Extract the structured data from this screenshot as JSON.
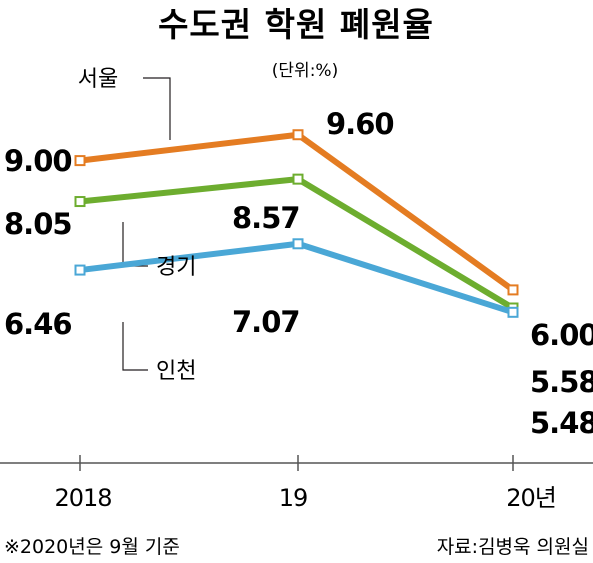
{
  "chart_data": {
    "type": "line",
    "title": "수도권 학원 폐원율",
    "unit": "(단위:%)",
    "categories": [
      "2018",
      "19",
      "20년"
    ],
    "series": [
      {
        "name": "서울",
        "values": [
          9.0,
          9.6,
          6.0
        ],
        "labels": [
          "9.00",
          "9.60",
          "6.00"
        ],
        "color": "#e47c22"
      },
      {
        "name": "경기",
        "values": [
          8.05,
          8.57,
          5.58
        ],
        "labels": [
          "8.05",
          "8.57",
          "5.58"
        ],
        "color": "#6dad2f"
      },
      {
        "name": "인천",
        "values": [
          6.46,
          7.07,
          5.48
        ],
        "labels": [
          "6.46",
          "7.07",
          "5.48"
        ],
        "color": "#4aa7d6"
      }
    ],
    "ylim": [
      4.0,
      10.5
    ],
    "grid": false,
    "legend": "inline",
    "note": "※2020년은 9월 기준",
    "source": "자료:김병욱 의원실"
  }
}
